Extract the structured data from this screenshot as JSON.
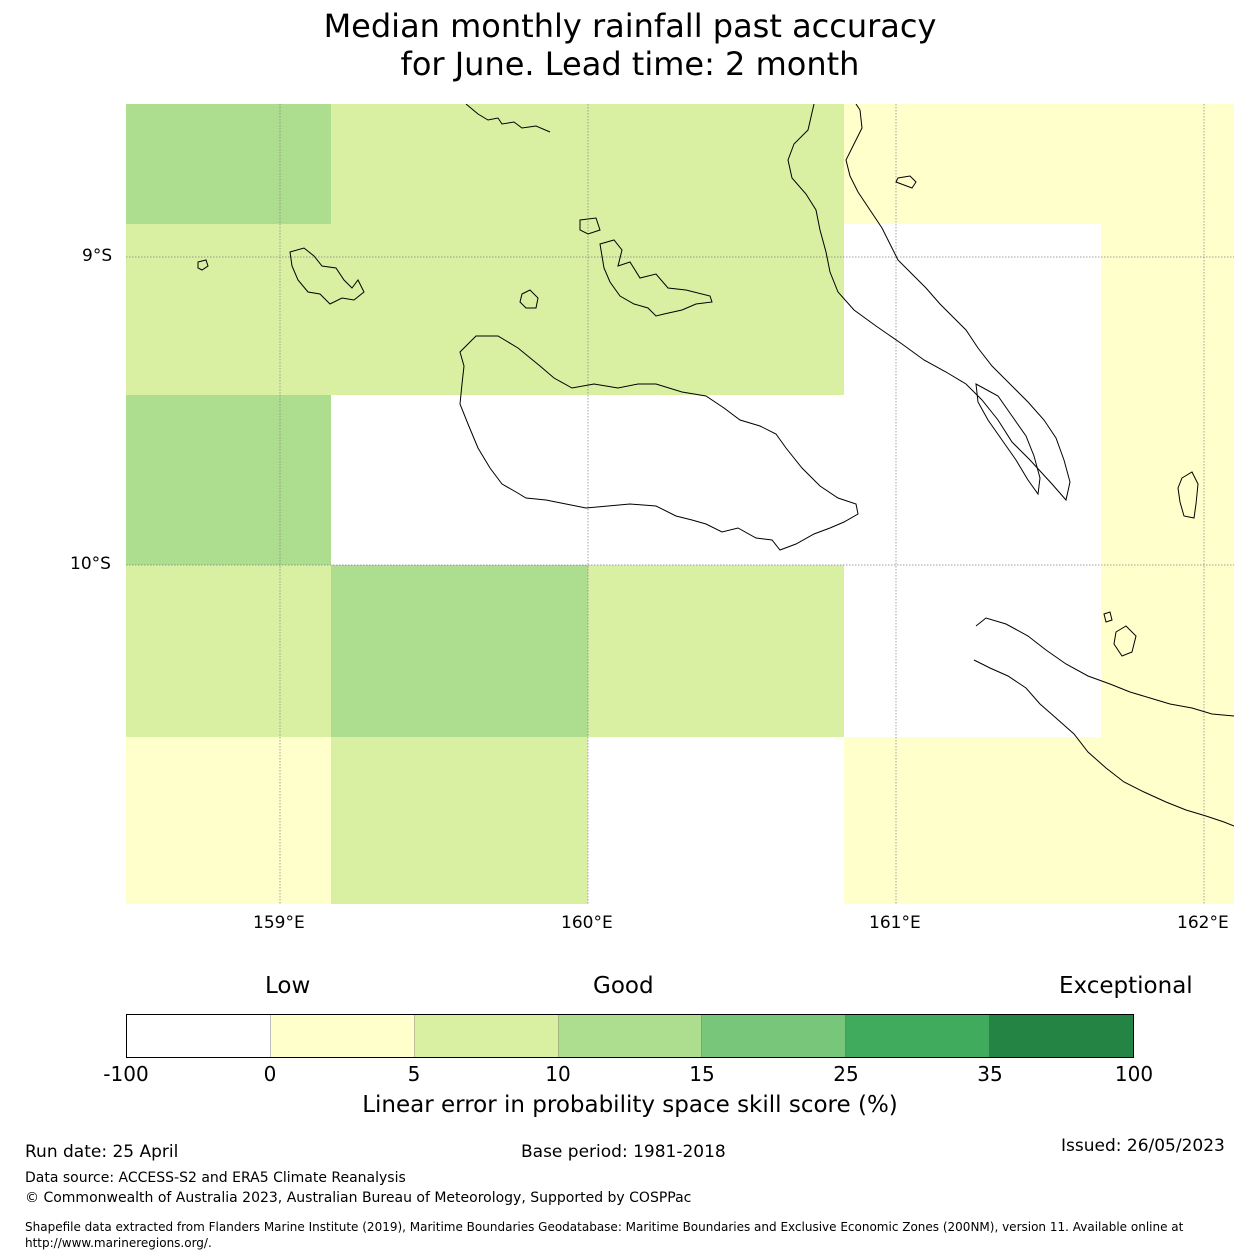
{
  "title_line1": "Median monthly rainfall past accuracy",
  "title_line2": "for June. Lead time: 2 month",
  "map": {
    "lat_labels": [
      "9°S",
      "10°S"
    ],
    "lon_labels": [
      "159°E",
      "160°E",
      "161°E",
      "162°E"
    ],
    "category_colors": {
      "below_0": "#ffffff",
      "0_5": "#ffffcc",
      "5_10": "#d9f0a3",
      "10_15": "#addd8e"
    },
    "grid_cells": [
      {
        "row": 0,
        "col": 0,
        "category": "10_15"
      },
      {
        "row": 0,
        "col": 1,
        "category": "5_10"
      },
      {
        "row": 0,
        "col": 2,
        "category": "5_10"
      },
      {
        "row": 0,
        "col": 3,
        "category": "0_5"
      },
      {
        "row": 0,
        "col": 4,
        "category": "0_5"
      },
      {
        "row": 1,
        "col": 0,
        "category": "5_10"
      },
      {
        "row": 1,
        "col": 1,
        "category": "5_10"
      },
      {
        "row": 1,
        "col": 2,
        "category": "5_10"
      },
      {
        "row": 1,
        "col": 3,
        "category": "below_0"
      },
      {
        "row": 1,
        "col": 4,
        "category": "0_5"
      },
      {
        "row": 2,
        "col": 0,
        "category": "10_15"
      },
      {
        "row": 2,
        "col": 1,
        "category": "below_0"
      },
      {
        "row": 2,
        "col": 2,
        "category": "below_0"
      },
      {
        "row": 2,
        "col": 3,
        "category": "below_0"
      },
      {
        "row": 2,
        "col": 4,
        "category": "0_5"
      },
      {
        "row": 3,
        "col": 0,
        "category": "5_10"
      },
      {
        "row": 3,
        "col": 1,
        "category": "10_15"
      },
      {
        "row": 3,
        "col": 2,
        "category": "5_10"
      },
      {
        "row": 3,
        "col": 3,
        "category": "below_0"
      },
      {
        "row": 3,
        "col": 4,
        "category": "0_5"
      },
      {
        "row": 4,
        "col": 0,
        "category": "0_5"
      },
      {
        "row": 4,
        "col": 1,
        "category": "5_10"
      },
      {
        "row": 4,
        "col": 2,
        "category": "below_0"
      },
      {
        "row": 4,
        "col": 3,
        "category": "0_5"
      },
      {
        "row": 4,
        "col": 4,
        "category": "0_5"
      }
    ]
  },
  "colorbar": {
    "label_low": "Low",
    "label_good": "Good",
    "label_exceptional": "Exceptional",
    "tick_labels": [
      "-100",
      "0",
      "5",
      "10",
      "15",
      "25",
      "35",
      "100"
    ],
    "colors": [
      "#ffffff",
      "#ffffcc",
      "#d9f0a3",
      "#addd8e",
      "#78c679",
      "#41ab5d",
      "#238443"
    ],
    "axis_label": "Linear error in probability space skill score (%)"
  },
  "footer": {
    "run_date": "Run date: 25 April",
    "base_period": "Base period: 1981-2018",
    "issued": "Issued: 26/05/2023",
    "data_source": "Data source: ACCESS-S2 and ERA5 Climate Reanalysis",
    "copyright": "© Commonwealth of Australia 2023, Australian Bureau of Meteorology, Supported by COSPPac",
    "shapefile_line1": "Shapefile data extracted from Flanders Marine Institute (2019), Maritime Boundaries Geodatabase: Maritime Boundaries and Exclusive Economic Zones (200NM), version 11. Available online at",
    "shapefile_line2": "http://www.marineregions.org/."
  }
}
